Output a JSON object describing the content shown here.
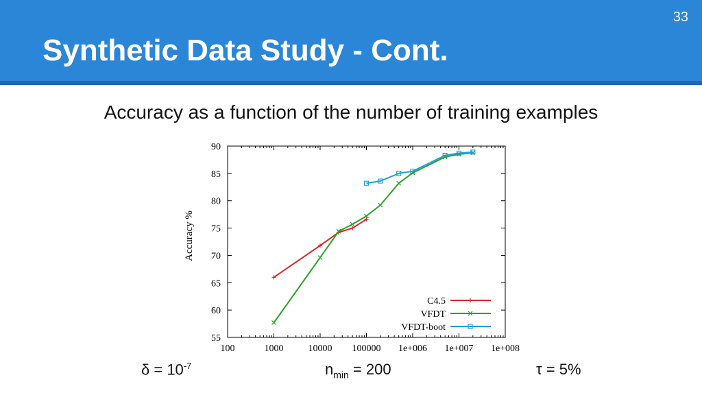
{
  "slide": {
    "title": "Synthetic Data Study - Cont.",
    "number": "33",
    "subtitle": "Accuracy as a function of the number of training examples",
    "header_color": "#2c86d8"
  },
  "footnotes": {
    "delta": {
      "base": "δ = 10",
      "exponent": "-7"
    },
    "nmin": {
      "base": "n",
      "subscript": "min",
      "rest": " = 200"
    },
    "tau": {
      "text": "τ = 5%"
    }
  },
  "chart_data": {
    "type": "line",
    "xscale": "log",
    "xlim": [
      100,
      100000000
    ],
    "ylim": [
      55,
      90
    ],
    "xticks": [
      100,
      1000,
      10000,
      100000,
      1000000,
      10000000,
      100000000
    ],
    "xtick_labels": [
      "100",
      "1000",
      "10000",
      "100000",
      "1e+006",
      "1e+007",
      "1e+008"
    ],
    "yticks": [
      55,
      60,
      65,
      70,
      75,
      80,
      85,
      90
    ],
    "ytick_labels": [
      "55",
      "60",
      "65",
      "70",
      "75",
      "80",
      "85",
      "90"
    ],
    "ylabel": "Accuracy %",
    "xlabel": "",
    "title": "",
    "legend_position": "bottom-right",
    "grid": false,
    "series": [
      {
        "name": "C4.5",
        "color": "#d62728",
        "marker": "plus",
        "points": [
          [
            1000,
            66.0
          ],
          [
            10000,
            71.8
          ],
          [
            25000,
            74.2
          ],
          [
            50000,
            75.0
          ],
          [
            100000,
            76.6
          ]
        ]
      },
      {
        "name": "VFDT",
        "color": "#2ca02c",
        "marker": "x",
        "points": [
          [
            1000,
            57.7
          ],
          [
            10000,
            69.6
          ],
          [
            25000,
            74.4
          ],
          [
            50000,
            75.7
          ],
          [
            100000,
            77.2
          ],
          [
            200000,
            79.2
          ],
          [
            500000,
            83.2
          ],
          [
            1000000,
            85.1
          ],
          [
            5000000,
            88.0
          ],
          [
            10000000,
            88.5
          ],
          [
            20000000,
            88.8
          ]
        ]
      },
      {
        "name": "VFDT-boot",
        "color": "#1f9ed4",
        "marker": "box",
        "points": [
          [
            100000,
            83.2
          ],
          [
            200000,
            83.6
          ],
          [
            500000,
            85.0
          ],
          [
            1000000,
            85.4
          ],
          [
            5000000,
            88.3
          ],
          [
            10000000,
            88.7
          ],
          [
            20000000,
            88.9
          ]
        ]
      }
    ]
  }
}
